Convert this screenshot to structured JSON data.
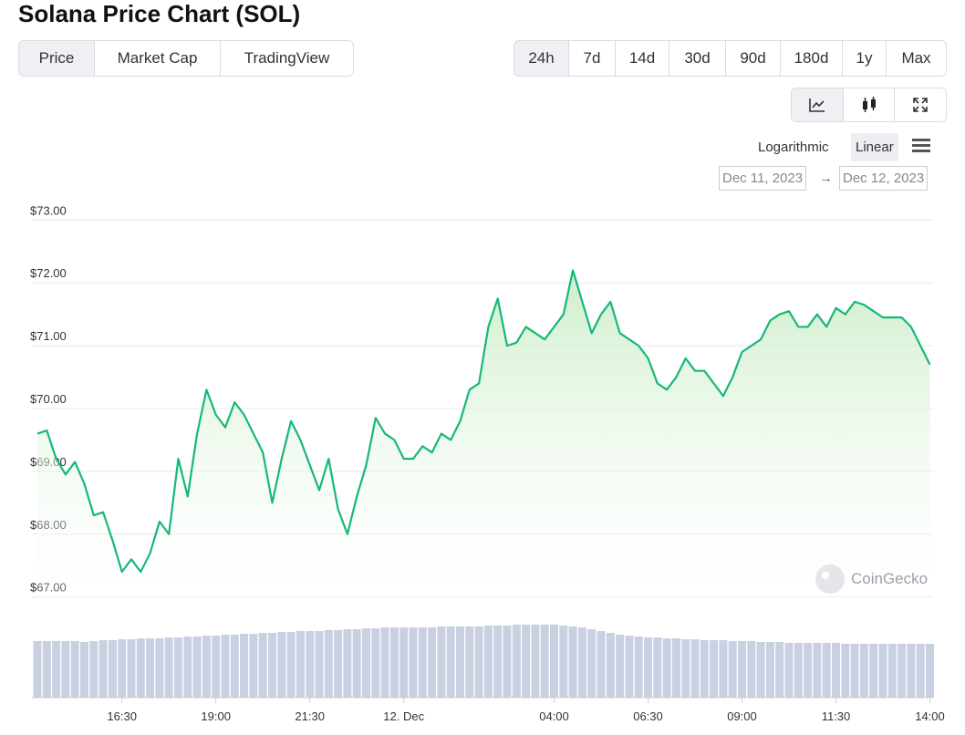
{
  "title": "Solana Price Chart (SOL)",
  "tabs": [
    "Price",
    "Market Cap",
    "TradingView"
  ],
  "ranges": [
    "24h",
    "7d",
    "14d",
    "30d",
    "90d",
    "180d",
    "1y",
    "Max"
  ],
  "scale_options": [
    "Logarithmic",
    "Linear"
  ],
  "date_from": "Dec 11, 2023",
  "date_arrow": "→",
  "date_to": "Dec 12, 2023",
  "watermark": "CoinGecko",
  "chart_data": {
    "type": "line",
    "color": "#16b879",
    "volume_color": "#c9d0e2",
    "categories": [
      null,
      null,
      null,
      null,
      null,
      null,
      null,
      null,
      null,
      "16:30",
      null,
      null,
      null,
      null,
      null,
      null,
      null,
      null,
      null,
      "19:00",
      null,
      null,
      null,
      null,
      null,
      null,
      null,
      null,
      null,
      "21:30",
      null,
      null,
      null,
      null,
      null,
      null,
      null,
      null,
      null,
      "12. Dec",
      null,
      null,
      null,
      null,
      null,
      null,
      null,
      null,
      null,
      null,
      null,
      null,
      null,
      null,
      null,
      "04:00",
      null,
      null,
      null,
      null,
      null,
      null,
      null,
      null,
      null,
      "06:30",
      null,
      null,
      null,
      null,
      null,
      null,
      null,
      null,
      null,
      "09:00",
      null,
      null,
      null,
      null,
      null,
      null,
      null,
      null,
      null,
      "11:30",
      null,
      null,
      null,
      null,
      null,
      null,
      null,
      null,
      null,
      "14:00"
    ],
    "values": [
      69.6,
      69.65,
      69.2,
      68.95,
      69.15,
      68.8,
      68.3,
      68.35,
      67.9,
      67.4,
      67.6,
      67.4,
      67.7,
      68.2,
      68.0,
      69.2,
      68.6,
      69.6,
      70.3,
      69.9,
      69.7,
      70.1,
      69.9,
      69.6,
      69.3,
      68.5,
      69.2,
      69.8,
      69.5,
      69.1,
      68.7,
      69.2,
      68.4,
      68.0,
      68.6,
      69.1,
      69.85,
      69.6,
      69.5,
      69.2,
      69.2,
      69.4,
      69.3,
      69.6,
      69.5,
      69.8,
      70.3,
      70.4,
      71.3,
      71.75,
      71.0,
      71.05,
      71.3,
      71.2,
      71.1,
      71.3,
      71.5,
      72.2,
      71.7,
      71.2,
      71.5,
      71.7,
      71.2,
      71.1,
      71.0,
      70.8,
      70.4,
      70.3,
      70.5,
      70.8,
      70.6,
      70.6,
      70.4,
      70.2,
      70.5,
      70.9,
      71.0,
      71.1,
      71.4,
      71.5,
      71.55,
      71.3,
      71.3,
      71.5,
      71.3,
      71.6,
      71.5,
      71.7,
      71.65,
      71.55,
      71.45,
      71.45,
      71.45,
      71.3,
      71.0,
      70.7
    ],
    "volume": [
      62,
      62,
      62,
      62,
      62,
      61,
      62,
      63,
      63,
      64,
      64,
      65,
      65,
      65,
      66,
      66,
      67,
      67,
      68,
      68,
      69,
      69,
      70,
      70,
      71,
      71,
      72,
      72,
      73,
      73,
      73,
      74,
      74,
      75,
      75,
      76,
      76,
      77,
      77,
      77,
      77,
      77,
      77,
      78,
      78,
      78,
      78,
      78,
      79,
      79,
      79,
      80,
      80,
      80,
      80,
      80,
      79,
      78,
      77,
      75,
      73,
      71,
      69,
      68,
      67,
      66,
      66,
      65,
      65,
      64,
      64,
      63,
      63,
      63,
      62,
      62,
      62,
      61,
      61,
      61,
      60,
      60,
      60,
      60,
      60,
      60,
      59,
      59,
      59,
      59,
      59,
      59,
      59,
      59,
      59,
      59
    ],
    "ylim": [
      66.85,
      73.15
    ],
    "y2lim": [
      0,
      82
    ],
    "yticks": [
      {
        "value": 67,
        "label": "$67.00"
      },
      {
        "value": 68,
        "label": "$68.00"
      },
      {
        "value": 69,
        "label": "$69.00"
      },
      {
        "value": 70,
        "label": "$70.00"
      },
      {
        "value": 71,
        "label": "$71.00"
      },
      {
        "value": 72,
        "label": "$72.00"
      },
      {
        "value": 73,
        "label": "$73.00"
      }
    ],
    "grid": true
  }
}
